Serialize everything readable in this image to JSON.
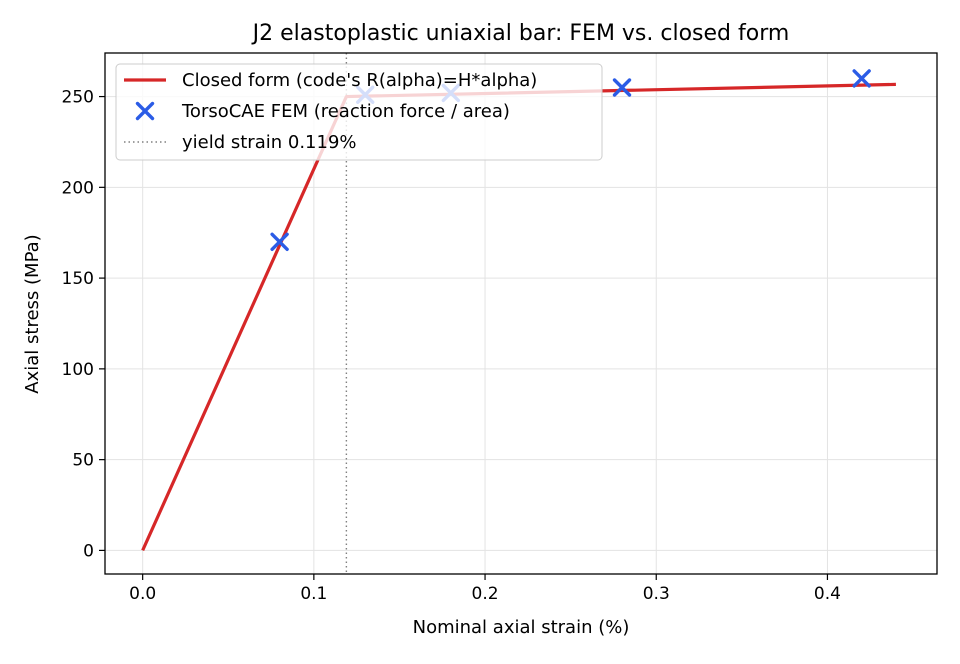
{
  "chart_data": {
    "type": "line",
    "title": "J2 elastoplastic uniaxial bar: FEM vs. closed form",
    "xlabel": "Nominal axial strain (%)",
    "ylabel": "Axial stress (MPa)",
    "xlim": [
      -0.022,
      0.464
    ],
    "ylim": [
      -13,
      274
    ],
    "xticks": [
      0.0,
      0.1,
      0.2,
      0.3,
      0.4
    ],
    "xtick_labels": [
      "0.0",
      "0.1",
      "0.2",
      "0.3",
      "0.4"
    ],
    "yticks": [
      0,
      50,
      100,
      150,
      200,
      250
    ],
    "ytick_labels": [
      "0",
      "50",
      "100",
      "150",
      "200",
      "250"
    ],
    "grid": true,
    "legend_position": "top-left",
    "series": [
      {
        "name": "Closed form (code's R(alpha)=H*alpha)",
        "kind": "line",
        "color": "#d62728",
        "x": [
          0.0,
          0.119,
          0.44
        ],
        "y": [
          0,
          250,
          256.7
        ]
      },
      {
        "name": "TorsoCAE FEM (reaction force / area)",
        "kind": "scatter",
        "marker": "x",
        "color": "#2b5ce6",
        "x": [
          0.08,
          0.13,
          0.18,
          0.28,
          0.42
        ],
        "y": [
          170,
          251,
          252,
          255,
          260
        ]
      },
      {
        "name": "yield strain 0.119%",
        "kind": "vline",
        "color": "#808080",
        "x": 0.119
      }
    ]
  }
}
